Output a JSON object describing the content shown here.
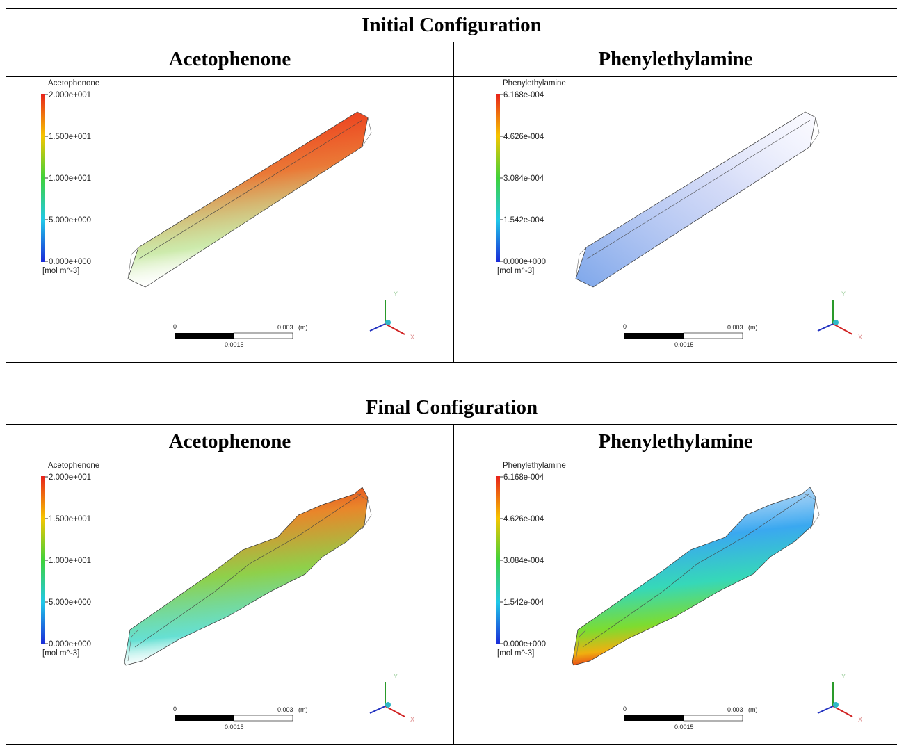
{
  "tables": [
    {
      "title": "Initial Configuration",
      "columns": [
        {
          "header": "Acetophenone",
          "legend": {
            "title": "Acetophenone",
            "ticks": [
              "2.000e+001",
              "1.500e+001",
              "1.000e+001",
              "5.000e+000",
              "0.000e+000"
            ],
            "unit": "[mol m^-3]"
          },
          "scale": {
            "start": "0",
            "end": "0.003",
            "unit": "(m)",
            "mid": "0.0015"
          },
          "axes": {
            "y": "Y",
            "x": "X"
          }
        },
        {
          "header": "Phenylethylamine",
          "legend": {
            "title": "Phenylethylamine",
            "ticks": [
              "6.168e-004",
              "4.626e-004",
              "3.084e-004",
              "1.542e-004",
              "0.000e+000"
            ],
            "unit": "[mol m^-3]"
          },
          "scale": {
            "start": "0",
            "end": "0.003",
            "unit": "(m)",
            "mid": "0.0015"
          },
          "axes": {
            "y": "Y",
            "x": "X"
          }
        }
      ]
    },
    {
      "title": "Final Configuration",
      "columns": [
        {
          "header": "Acetophenone",
          "legend": {
            "title": "Acetophenone",
            "ticks": [
              "2.000e+001",
              "1.500e+001",
              "1.000e+001",
              "5.000e+000",
              "0.000e+000"
            ],
            "unit": "[mol m^-3]"
          },
          "scale": {
            "start": "0",
            "end": "0.003",
            "unit": "(m)",
            "mid": "0.0015"
          },
          "axes": {
            "y": "Y",
            "x": "X"
          }
        },
        {
          "header": "Phenylethylamine",
          "legend": {
            "title": "Phenylethylamine",
            "ticks": [
              "6.168e-004",
              "4.626e-004",
              "3.084e-004",
              "1.542e-004",
              "0.000e+000"
            ],
            "unit": "[mol m^-3]"
          },
          "scale": {
            "start": "0",
            "end": "0.003",
            "unit": "(m)",
            "mid": "0.0015"
          },
          "axes": {
            "y": "Y",
            "x": "X"
          }
        }
      ]
    }
  ]
}
